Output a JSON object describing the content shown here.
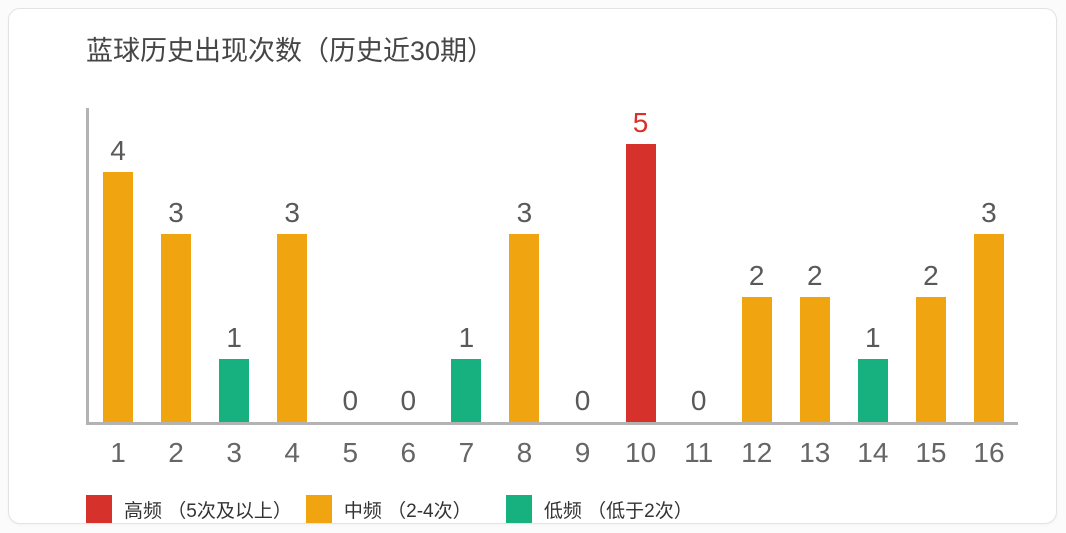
{
  "page": {
    "background": "#fbfbfb"
  },
  "card": {
    "background": "#ffffff",
    "border_color": "#e3e3e3"
  },
  "chart": {
    "title": "蓝球历史出现次数（历史近30期）"
  },
  "chart_data": {
    "type": "bar",
    "title": "蓝球历史出现次数（历史近30期）",
    "categories": [
      "1",
      "2",
      "3",
      "4",
      "5",
      "6",
      "7",
      "8",
      "9",
      "10",
      "11",
      "12",
      "13",
      "14",
      "15",
      "16"
    ],
    "values": [
      4,
      3,
      1,
      3,
      0,
      0,
      1,
      3,
      0,
      5,
      0,
      2,
      2,
      1,
      2,
      3
    ],
    "xlabel": "",
    "ylabel": "",
    "ylim": [
      0,
      5
    ],
    "grid": false,
    "legend_position": "bottom",
    "axis_color": "#b3b3b3",
    "value_label_color": "#595959",
    "high_value_label_color": "#d7312c",
    "tick_label_color": "#666666",
    "thresholds": {
      "high_min": 5,
      "mid_min": 2
    },
    "colors": {
      "high": "#d7312c",
      "mid": "#f0a410",
      "low": "#17b17f"
    }
  },
  "legend": {
    "items": [
      {
        "key": "high",
        "label": "高频 （5次及以上）",
        "color": "#d7312c"
      },
      {
        "key": "mid",
        "label": "中频 （2-4次）",
        "color": "#f0a410"
      },
      {
        "key": "low",
        "label": "低频 （低于2次）",
        "color": "#17b17f"
      }
    ]
  }
}
